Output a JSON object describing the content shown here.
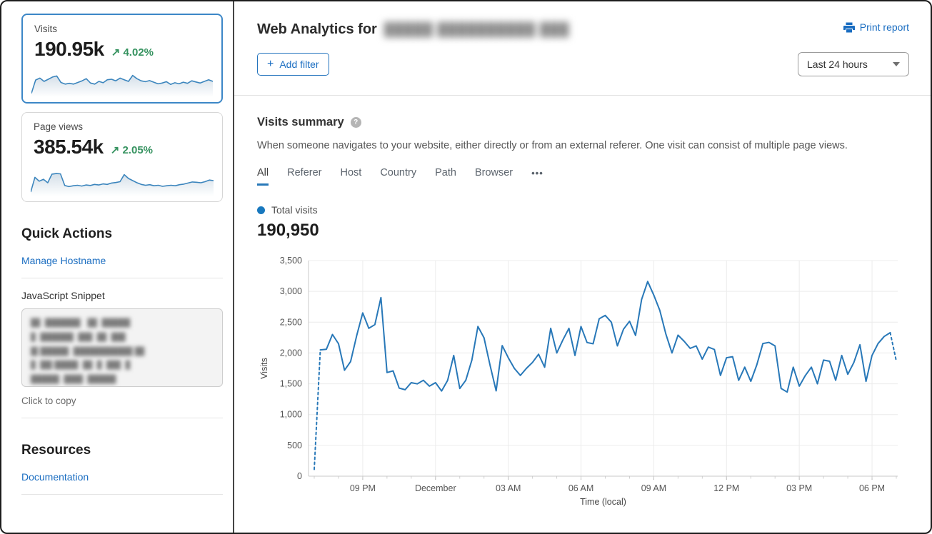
{
  "colors": {
    "link_blue": "#1a6dc1",
    "accent_blue": "#2878b8",
    "delta_green": "#35925f",
    "selected_card_border": "#3c87c7"
  },
  "sidebar": {
    "metric_cards": [
      {
        "label": "Visits",
        "value": "190.95k",
        "delta_arrow": "↗",
        "delta": "4.02%",
        "selected": true,
        "sparkline": [
          6,
          55,
          62,
          50,
          58,
          66,
          70,
          46,
          40,
          43,
          40,
          46,
          52,
          60,
          44,
          40,
          50,
          45,
          56,
          58,
          52,
          62,
          56,
          50,
          72,
          60,
          52,
          49,
          53,
          47,
          41,
          44,
          49,
          39,
          45,
          41,
          47,
          43,
          52,
          48,
          44,
          50,
          56,
          50
        ]
      },
      {
        "label": "Page views",
        "value": "385.54k",
        "delta_arrow": "↗",
        "delta": "2.05%",
        "selected": false,
        "sparkline": [
          8,
          62,
          48,
          55,
          42,
          74,
          76,
          75,
          32,
          28,
          31,
          33,
          30,
          34,
          32,
          36,
          34,
          38,
          36,
          41,
          43,
          46,
          72,
          58,
          50,
          42,
          36,
          33,
          35,
          31,
          33,
          29,
          31,
          33,
          31,
          35,
          37,
          41,
          45,
          44,
          42,
          46,
          52,
          50
        ]
      }
    ],
    "quick_actions": {
      "title": "Quick Actions",
      "links": [
        "Manage Hostname"
      ],
      "snippet_label": "JavaScript Snippet",
      "snippet_redacted": true,
      "snippet_hint": "Click to copy"
    },
    "resources": {
      "title": "Resources",
      "links": [
        "Documentation"
      ]
    }
  },
  "header": {
    "title_prefix": "Web Analytics for",
    "domain_redacted": true,
    "print_label": "Print report"
  },
  "toolbar": {
    "add_filter_plus": "+",
    "add_filter_label": "Add filter",
    "time_range": "Last 24 hours"
  },
  "summary": {
    "title": "Visits summary",
    "help_glyph": "?",
    "description": "When someone navigates to your website, either directly or from an external referer. One visit can consist of multiple page views.",
    "tabs": [
      "All",
      "Referer",
      "Host",
      "Country",
      "Path",
      "Browser"
    ],
    "active_tab": "All",
    "overflow_label": "•••",
    "legend_label": "Total visits",
    "total_value": "190,950"
  },
  "chart_data": {
    "type": "line",
    "title": "Total visits",
    "xlabel": "Time (local)",
    "ylabel": "Visits",
    "ylim": [
      0,
      3500
    ],
    "ytick_values": [
      0,
      500,
      1000,
      1500,
      2000,
      2500,
      3000,
      3500
    ],
    "ytick_labels": [
      "0",
      "500",
      "1,000",
      "1,500",
      "2,000",
      "2,500",
      "3,000",
      "3,500"
    ],
    "x_tick_labels": [
      "09 PM",
      "December",
      "03 AM",
      "06 AM",
      "09 AM",
      "12 PM",
      "03 PM",
      "06 PM"
    ],
    "x_tick_indices": [
      8,
      20,
      32,
      44,
      56,
      68,
      80,
      92
    ],
    "minor_tick_step": 4,
    "grid": true,
    "line_color": "#2878b8",
    "dashed_head_segments": 1,
    "dashed_tail_segments": 1,
    "values": [
      110,
      2050,
      2060,
      2300,
      2150,
      1720,
      1860,
      2280,
      2650,
      2400,
      2460,
      2900,
      1683,
      1710,
      1430,
      1403,
      1518,
      1498,
      1556,
      1462,
      1518,
      1383,
      1556,
      1960,
      1423,
      1556,
      1884,
      2430,
      2247,
      1800,
      1385,
      2120,
      1923,
      1750,
      1635,
      1750,
      1846,
      1980,
      1770,
      2400,
      2000,
      2210,
      2400,
      1960,
      2430,
      2170,
      2150,
      2555,
      2610,
      2500,
      2115,
      2385,
      2515,
      2285,
      2870,
      3160,
      2940,
      2690,
      2305,
      2000,
      2290,
      2190,
      2075,
      2115,
      1900,
      2095,
      2057,
      1635,
      1923,
      1940,
      1557,
      1770,
      1540,
      1808,
      2153,
      2172,
      2115,
      1424,
      1365,
      1770,
      1462,
      1635,
      1770,
      1500,
      1885,
      1866,
      1557,
      1960,
      1654,
      1846,
      2134,
      1539,
      1960,
      2153,
      2268,
      2330,
      1870
    ]
  }
}
